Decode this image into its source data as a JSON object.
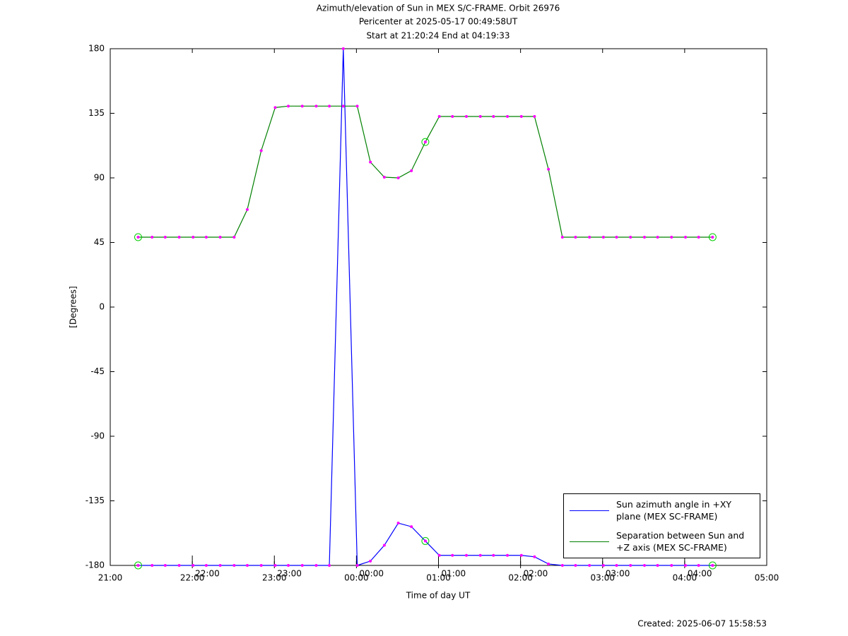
{
  "chart_data": {
    "type": "line",
    "title": "Azimuth/elevation of Sun in MEX S/C-FRAME.  Orbit 26976",
    "subtitle": [
      "Pericenter at 2025-05-17 00:49:58UT",
      "Start at 21:20:24 End at 04:19:33"
    ],
    "x_label": "Time of day UT",
    "y_label": "[Degrees]",
    "footer": "Created: 2025-06-07 15:58:53",
    "x": [
      21.34,
      21.51,
      21.67,
      21.84,
      22.01,
      22.17,
      22.34,
      22.51,
      22.67,
      22.84,
      23.01,
      23.17,
      23.34,
      23.51,
      23.67,
      23.84,
      24.01,
      24.17,
      24.34,
      24.51,
      24.67,
      24.84,
      25.01,
      25.17,
      25.34,
      25.51,
      25.67,
      25.84,
      26.01,
      26.17,
      26.34,
      26.51,
      26.67,
      26.84,
      27.01,
      27.17,
      27.34,
      27.51,
      27.67,
      27.84,
      28.01,
      28.17,
      28.34
    ],
    "series": [
      {
        "name": "Sun azimuth angle in +XY plane (MEX SC-FRAME)",
        "color": "#0000ff",
        "values": [
          -180,
          -180,
          -180,
          -180,
          -180,
          -180,
          -180,
          -180,
          -180,
          -180,
          -180,
          -180,
          -180,
          -180,
          -180,
          180,
          -180,
          -177,
          -166,
          -150.5,
          -153,
          -163,
          -173,
          -173,
          -173,
          -173,
          -173,
          -173,
          -173,
          -174,
          -179,
          -180,
          -180,
          -180,
          -180,
          -180,
          -180,
          -180,
          -180,
          -180,
          -180,
          -180,
          -180
        ]
      },
      {
        "name": "Separation between Sun and +Z axis (MEX SC-FRAME)",
        "color": "#008000",
        "values": [
          48.7,
          48.7,
          48.7,
          48.7,
          48.7,
          48.7,
          48.7,
          48.7,
          67.9,
          109,
          139,
          140,
          140,
          140,
          140,
          140,
          140,
          101,
          90.5,
          90,
          95,
          115,
          132.8,
          132.8,
          132.8,
          132.8,
          132.8,
          132.8,
          132.8,
          132.8,
          96,
          48.7,
          48.7,
          48.7,
          48.7,
          48.7,
          48.7,
          48.7,
          48.7,
          48.7,
          48.7,
          48.7,
          48.7
        ]
      }
    ],
    "marker_color": "#ff00ff",
    "xlim": [
      21,
      29
    ],
    "xticks": [
      {
        "value": 21,
        "label": "21:00"
      },
      {
        "value": 22,
        "label": "22:00"
      },
      {
        "value": 23,
        "label": "23:00"
      },
      {
        "value": 24,
        "label": "00:00"
      },
      {
        "value": 25,
        "label": "01:00"
      },
      {
        "value": 26,
        "label": "02:00"
      },
      {
        "value": 27,
        "label": "03:00"
      },
      {
        "value": 28,
        "label": "04:00"
      },
      {
        "value": 29,
        "label": "05:00"
      }
    ],
    "time_marks": [
      {
        "value": 22,
        "label": "22:00"
      },
      {
        "value": 23,
        "label": "23:00"
      },
      {
        "value": 24,
        "label": "00:00"
      },
      {
        "value": 25,
        "label": "01:00"
      },
      {
        "value": 26,
        "label": "02:00"
      },
      {
        "value": 27,
        "label": "03:00"
      },
      {
        "value": 28,
        "label": "04:00"
      }
    ],
    "ylim": [
      -180,
      180
    ],
    "yticks": [
      -180,
      -135,
      -90,
      -45,
      0,
      45,
      90,
      135,
      180
    ],
    "grid": false,
    "legend": "lower right"
  }
}
